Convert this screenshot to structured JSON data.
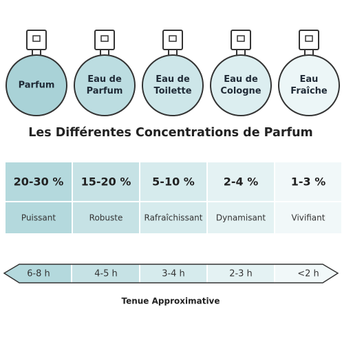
{
  "bottles": [
    {
      "lines": [
        "Parfum"
      ]
    },
    {
      "lines": [
        "Eau de",
        "Parfum"
      ]
    },
    {
      "lines": [
        "Eau de",
        "Toilette"
      ]
    },
    {
      "lines": [
        "Eau de",
        "Cologne"
      ]
    },
    {
      "lines": [
        "Eau",
        "Fraîche"
      ]
    }
  ],
  "title": "Les Différentes Concentrations de Parfum",
  "table": {
    "percentages": [
      "20-30 %",
      "15-20 %",
      "5-10 %",
      "2-4 %",
      "1-3 %"
    ],
    "descriptors": [
      "Puissant",
      "Robuste",
      "Rafraîchissant",
      "Dynamisant",
      "Vivifiant"
    ]
  },
  "duration": {
    "values": [
      "6-8 h",
      "4-5 h",
      "3-4 h",
      "2-3 h",
      "<2 h"
    ],
    "caption": "Tenue Approximative"
  }
}
